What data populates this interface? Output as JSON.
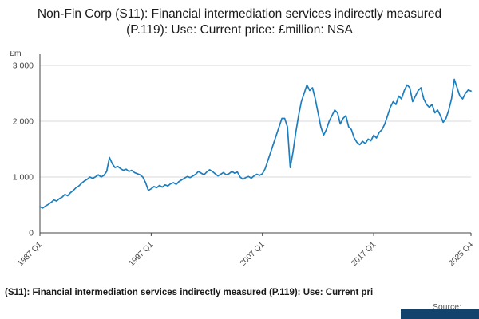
{
  "title": "Non-Fin Corp (S11): Financial intermediation services indirectly measured (P.119): Use: Current price: £million: NSA",
  "footer": {
    "series_title": "(S11): Financial intermediation services indirectly measured (P.119): Use: Current pri",
    "source_label": "Source:"
  },
  "colors": {
    "line": "#1d7dbd",
    "grid": "#d9d9d9",
    "axis": "#444444",
    "tick_text": "#444444",
    "footer_block": "#12436d"
  },
  "chart_data": {
    "type": "line",
    "title": "Non-Fin Corp (S11): Financial intermediation services indirectly measured (P.119): Use: Current price: £million: NSA",
    "ylabel": "£m",
    "xlabel": "",
    "ylim": [
      0,
      3000
    ],
    "grid": true,
    "legend": "none",
    "y_ticks": [
      {
        "label": "0",
        "value": 0
      },
      {
        "label": "1 000",
        "value": 1000
      },
      {
        "label": "2 000",
        "value": 2000
      },
      {
        "label": "3 000",
        "value": 3000
      }
    ],
    "x_ticks": [
      {
        "label": "1987 Q1",
        "pos": 0.0
      },
      {
        "label": "1997 Q1",
        "pos": 0.2581
      },
      {
        "label": "2007 Q1",
        "pos": 0.5161
      },
      {
        "label": "2017 Q1",
        "pos": 0.7742
      },
      {
        "label": "2025 Q4",
        "pos": 1.0
      }
    ],
    "x_start": "1987 Q1",
    "x_end": "2025 Q4",
    "frequency": "quarterly",
    "values": [
      470,
      445,
      480,
      510,
      545,
      590,
      570,
      615,
      640,
      690,
      665,
      720,
      760,
      810,
      840,
      890,
      930,
      960,
      1000,
      975,
      1005,
      1040,
      1000,
      1030,
      1100,
      1350,
      1240,
      1170,
      1190,
      1150,
      1120,
      1140,
      1100,
      1120,
      1080,
      1060,
      1040,
      1000,
      900,
      760,
      790,
      830,
      810,
      850,
      820,
      860,
      840,
      880,
      900,
      870,
      920,
      950,
      980,
      1010,
      990,
      1020,
      1050,
      1100,
      1070,
      1040,
      1090,
      1130,
      1100,
      1060,
      1020,
      1050,
      1080,
      1040,
      1060,
      1100,
      1070,
      1090,
      1000,
      960,
      990,
      1010,
      980,
      1020,
      1050,
      1030,
      1060,
      1150,
      1300,
      1450,
      1600,
      1750,
      1900,
      2050,
      2050,
      1900,
      1170,
      1450,
      1800,
      2100,
      2350,
      2500,
      2650,
      2550,
      2600,
      2400,
      2150,
      1900,
      1750,
      1850,
      2000,
      2100,
      2200,
      2150,
      1950,
      2050,
      2100,
      1900,
      1850,
      1700,
      1620,
      1580,
      1640,
      1600,
      1680,
      1650,
      1750,
      1700,
      1800,
      1850,
      1950,
      2100,
      2250,
      2350,
      2300,
      2450,
      2400,
      2550,
      2650,
      2600,
      2350,
      2450,
      2550,
      2600,
      2400,
      2300,
      2250,
      2300,
      2150,
      2200,
      2100,
      1980,
      2050,
      2200,
      2400,
      2750,
      2600,
      2450,
      2400,
      2500,
      2560,
      2540
    ]
  }
}
